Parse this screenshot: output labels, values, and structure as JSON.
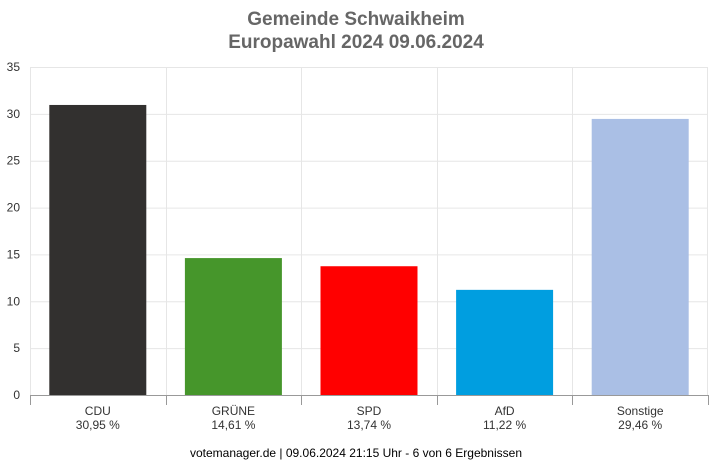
{
  "title": "Gemeinde Schwaikheim",
  "subtitle": "Europawahl 2024 09.06.2024",
  "footer": "votemanager.de | 09.06.2024 21:15 Uhr - 6 von 6 Ergebnissen",
  "chart_data": {
    "type": "bar",
    "title": "Gemeinde Schwaikheim",
    "subtitle": "Europawahl 2024 09.06.2024",
    "xlabel": "",
    "ylabel": "",
    "categories": [
      "CDU",
      "GRÜNE",
      "SPD",
      "AfD",
      "Sonstige"
    ],
    "values": [
      30.95,
      14.61,
      13.74,
      11.22,
      29.46
    ],
    "value_labels": [
      "30,95 %",
      "14,61 %",
      "13,74 %",
      "11,22 %",
      "29,46 %"
    ],
    "colors": [
      "#32302f",
      "#46962b",
      "#ff0000",
      "#009ee0",
      "#aabfe5"
    ],
    "ylim": [
      0,
      35
    ],
    "yticks": [
      0,
      5,
      10,
      15,
      20,
      25,
      30,
      35
    ],
    "grid": true,
    "legend": "none"
  }
}
